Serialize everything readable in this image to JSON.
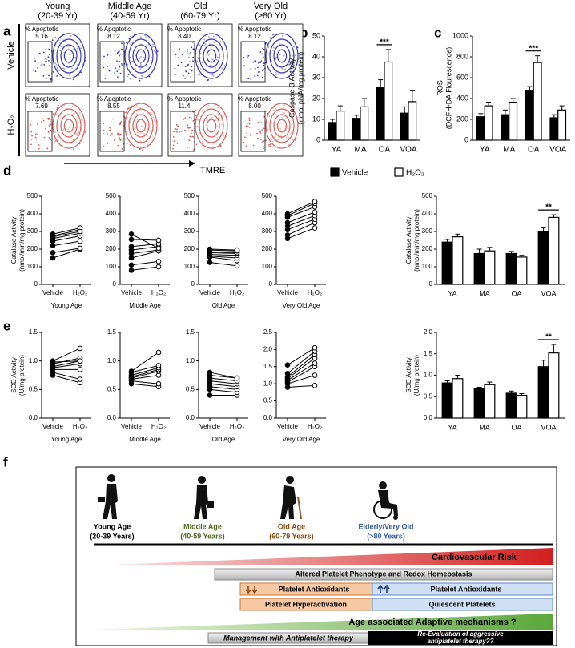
{
  "panel_letters": [
    "a",
    "b",
    "c",
    "d",
    "e",
    "f"
  ],
  "flow": {
    "columns": [
      {
        "name": "Young",
        "range": "(20-39 Yr)"
      },
      {
        "name": "Middle Age",
        "range": "(40-59 Yr)"
      },
      {
        "name": "Old",
        "range": "(60-79 Yr)"
      },
      {
        "name": "Very Old",
        "range": "(≥80 Yr)"
      }
    ],
    "rows": [
      {
        "label": "Vehicle",
        "color": "#3a3ab0",
        "gates": [
          {
            "title": "% Apoptotic",
            "value": "5.16"
          },
          {
            "title": "% Apoptotic",
            "value": "8.12"
          },
          {
            "title": "% Apoptotic",
            "value": "8.40"
          },
          {
            "title": "% Apoptotic",
            "value": "8.12"
          }
        ]
      },
      {
        "label": "H₂O₂",
        "color": "#d9605a",
        "gates": [
          {
            "title": "% Apoptotic",
            "value": "7.69"
          },
          {
            "title": "% Apoptotic",
            "value": "8.55"
          },
          {
            "title": "% Apoptotic",
            "value": "11.4"
          },
          {
            "title": "% Apoptotic",
            "value": "8.00"
          }
        ]
      }
    ],
    "xlabel": "TMRE"
  },
  "chart_data": [
    {
      "type": "bar",
      "ylabel": [
        "Caspase-3 Activity",
        "(umol pNA/mg protein)"
      ],
      "categories": [
        "YA",
        "MA",
        "OA",
        "VOA"
      ],
      "series": [
        {
          "name": "Vehicle",
          "color": "#000000",
          "values": [
            8.5,
            10.5,
            25.5,
            13
          ],
          "errors": [
            1.5,
            1.5,
            3.5,
            3
          ]
        },
        {
          "name": "H₂O₂",
          "color": "#ffffff",
          "values": [
            14,
            16,
            37.5,
            18.5
          ],
          "errors": [
            2.5,
            4,
            6,
            5.5
          ]
        }
      ],
      "ylim": [
        0,
        50
      ],
      "yticks": [
        0,
        10,
        20,
        30,
        40,
        50
      ],
      "annotations": [
        {
          "category": "OA",
          "text": "***"
        }
      ],
      "legend": "below"
    },
    {
      "type": "bar",
      "ylabel": [
        "ROS",
        "(DCFH-DA Flourescence)"
      ],
      "categories": [
        "YA",
        "MA",
        "OA",
        "VOA"
      ],
      "series": [
        {
          "color": "#000000",
          "values": [
            225,
            245,
            480,
            215
          ],
          "errors": [
            30,
            45,
            35,
            30
          ]
        },
        {
          "color": "#ffffff",
          "values": [
            330,
            365,
            745,
            290
          ],
          "errors": [
            35,
            35,
            65,
            40
          ]
        }
      ],
      "ylim": [
        0,
        1000
      ],
      "yticks": [
        0,
        200,
        400,
        600,
        800,
        1000
      ],
      "annotations": [
        {
          "category": "OA",
          "text": "***"
        }
      ]
    },
    {
      "type": "paired",
      "ylabel": [
        "Catalase Activity",
        "(nmol/min/mg protein)"
      ],
      "xlabel": "Young Age",
      "categories": [
        "Vehicle",
        "H₂O₂"
      ],
      "marker_fill": [
        "#000000",
        "#ffffff"
      ],
      "ylim": [
        0,
        500
      ],
      "yticks": [
        0,
        100,
        200,
        300,
        400,
        500
      ],
      "series": [
        {
          "values": [
            150,
            200
          ]
        },
        {
          "values": [
            180,
            205
          ]
        },
        {
          "values": [
            220,
            245
          ]
        },
        {
          "values": [
            245,
            275
          ]
        },
        {
          "values": [
            260,
            290
          ]
        },
        {
          "values": [
            275,
            310
          ]
        },
        {
          "values": [
            285,
            320
          ]
        },
        {
          "values": [
            270,
            300
          ]
        }
      ]
    },
    {
      "type": "paired",
      "xlabel": "Middle Age",
      "categories": [
        "Vehicle",
        "H₂O₂"
      ],
      "marker_fill": [
        "#000000",
        "#ffffff"
      ],
      "ylim": [
        0,
        500
      ],
      "yticks": [
        0,
        100,
        200,
        300,
        400,
        500
      ],
      "series": [
        {
          "values": [
            80,
            100
          ]
        },
        {
          "values": [
            110,
            130
          ]
        },
        {
          "values": [
            150,
            190
          ]
        },
        {
          "values": [
            175,
            195
          ]
        },
        {
          "values": [
            195,
            215
          ]
        },
        {
          "values": [
            215,
            230
          ]
        },
        {
          "values": [
            255,
            250
          ]
        },
        {
          "values": [
            285,
            205
          ]
        }
      ]
    },
    {
      "type": "paired",
      "xlabel": "Old Age",
      "categories": [
        "Vehicle",
        "H₂O₂"
      ],
      "marker_fill": [
        "#000000",
        "#ffffff"
      ],
      "ylim": [
        0,
        500
      ],
      "yticks": [
        0,
        100,
        200,
        300,
        400,
        500
      ],
      "series": [
        {
          "values": [
            125,
            105
          ]
        },
        {
          "values": [
            155,
            135
          ]
        },
        {
          "values": [
            160,
            150
          ]
        },
        {
          "values": [
            170,
            165
          ]
        },
        {
          "values": [
            180,
            175
          ]
        },
        {
          "values": [
            185,
            180
          ]
        },
        {
          "values": [
            195,
            190
          ]
        },
        {
          "values": [
            200,
            195
          ]
        }
      ]
    },
    {
      "type": "paired",
      "xlabel": "Very Old Age",
      "categories": [
        "Vehicle",
        "H₂O₂"
      ],
      "marker_fill": [
        "#000000",
        "#ffffff"
      ],
      "ylim": [
        0,
        500
      ],
      "yticks": [
        0,
        100,
        200,
        300,
        400,
        500
      ],
      "series": [
        {
          "values": [
            260,
            320
          ]
        },
        {
          "values": [
            280,
            350
          ]
        },
        {
          "values": [
            310,
            370
          ]
        },
        {
          "values": [
            330,
            390
          ]
        },
        {
          "values": [
            350,
            410
          ]
        },
        {
          "values": [
            380,
            440
          ]
        },
        {
          "values": [
            390,
            460
          ]
        },
        {
          "values": [
            400,
            470
          ]
        }
      ]
    },
    {
      "type": "bar",
      "ylabel": [
        "Catalase Activity",
        "(nmol/min/mg protein)"
      ],
      "categories": [
        "YA",
        "MA",
        "OA",
        "VOA"
      ],
      "series": [
        {
          "color": "#000000",
          "values": [
            240,
            175,
            175,
            300
          ],
          "errors": [
            15,
            25,
            12,
            20
          ]
        },
        {
          "color": "#ffffff",
          "values": [
            270,
            190,
            155,
            380
          ],
          "errors": [
            15,
            20,
            10,
            15
          ]
        }
      ],
      "ylim": [
        0,
        500
      ],
      "yticks": [
        0,
        100,
        200,
        300,
        400,
        500
      ],
      "annotations": [
        {
          "category": "VOA",
          "text": "**"
        }
      ]
    },
    {
      "type": "paired",
      "ylabel": [
        "SOD Activity",
        "(U/mg protein)"
      ],
      "xlabel": "Young Age",
      "categories": [
        "Vehicle",
        "H₂O₂"
      ],
      "marker_fill": [
        "#000000",
        "#ffffff"
      ],
      "ylim": [
        0,
        1.5
      ],
      "yticks": [
        {
          "value": 0,
          "label": "0.0"
        },
        {
          "value": 0.5,
          "label": "0.5"
        },
        {
          "value": 1,
          "label": "1.0"
        },
        {
          "value": 1.5,
          "label": "1.5"
        }
      ],
      "series": [
        {
          "values": [
            0.75,
            0.62
          ]
        },
        {
          "values": [
            0.8,
            0.68
          ]
        },
        {
          "values": [
            0.85,
            0.85
          ]
        },
        {
          "values": [
            0.88,
            0.95
          ]
        },
        {
          "values": [
            0.9,
            1.0
          ]
        },
        {
          "values": [
            0.95,
            1.05
          ]
        },
        {
          "values": [
            1.0,
            1.22
          ]
        },
        {
          "values": [
            0.98,
            1.0
          ]
        }
      ]
    },
    {
      "type": "paired",
      "xlabel": "Middle Age",
      "categories": [
        "Vehicle",
        "H₂O₂"
      ],
      "marker_fill": [
        "#000000",
        "#ffffff"
      ],
      "ylim": [
        0,
        1.5
      ],
      "yticks": [
        {
          "value": 0,
          "label": "0.0"
        },
        {
          "value": 0.5,
          "label": "0.5"
        },
        {
          "value": 1,
          "label": "1.0"
        },
        {
          "value": 1.5,
          "label": "1.5"
        }
      ],
      "series": [
        {
          "values": [
            0.6,
            0.55
          ]
        },
        {
          "values": [
            0.65,
            0.6
          ]
        },
        {
          "values": [
            0.68,
            0.75
          ]
        },
        {
          "values": [
            0.7,
            0.82
          ]
        },
        {
          "values": [
            0.72,
            0.85
          ]
        },
        {
          "values": [
            0.75,
            0.88
          ]
        },
        {
          "values": [
            0.8,
            0.92
          ]
        },
        {
          "values": [
            0.82,
            1.15
          ]
        }
      ]
    },
    {
      "type": "paired",
      "xlabel": "Old Age",
      "categories": [
        "Vehicle",
        "H₂O₂"
      ],
      "marker_fill": [
        "#000000",
        "#ffffff"
      ],
      "ylim": [
        0,
        1.5
      ],
      "yticks": [
        {
          "value": 0,
          "label": "0.0"
        },
        {
          "value": 0.5,
          "label": "0.5"
        },
        {
          "value": 1,
          "label": "1.0"
        },
        {
          "value": 1.5,
          "label": "1.5"
        }
      ],
      "series": [
        {
          "values": [
            0.4,
            0.4
          ]
        },
        {
          "values": [
            0.5,
            0.45
          ]
        },
        {
          "values": [
            0.55,
            0.5
          ]
        },
        {
          "values": [
            0.6,
            0.55
          ]
        },
        {
          "values": [
            0.65,
            0.6
          ]
        },
        {
          "values": [
            0.7,
            0.65
          ]
        },
        {
          "values": [
            0.75,
            0.7
          ]
        },
        {
          "values": [
            0.8,
            0.7
          ]
        }
      ]
    },
    {
      "type": "paired",
      "xlabel": "Very Old Age",
      "categories": [
        "Vehicle",
        "H₂O₂"
      ],
      "marker_fill": [
        "#000000",
        "#ffffff"
      ],
      "ylim": [
        0,
        2.5
      ],
      "yticks": [
        {
          "value": 0,
          "label": "0.0"
        },
        {
          "value": 0.5,
          "label": "0.5"
        },
        {
          "value": 1,
          "label": "1.0"
        },
        {
          "value": 1.5,
          "label": "1.5"
        },
        {
          "value": 2,
          "label": "2.0"
        },
        {
          "value": 2.5,
          "label": "2.5"
        }
      ],
      "series": [
        {
          "values": [
            0.9,
            0.95
          ]
        },
        {
          "values": [
            1.0,
            1.25
          ]
        },
        {
          "values": [
            1.05,
            1.5
          ]
        },
        {
          "values": [
            1.1,
            1.6
          ]
        },
        {
          "values": [
            1.15,
            1.75
          ]
        },
        {
          "values": [
            1.2,
            1.85
          ]
        },
        {
          "values": [
            1.3,
            1.95
          ]
        },
        {
          "values": [
            1.55,
            2.05
          ]
        }
      ]
    },
    {
      "type": "bar",
      "ylabel": [
        "SOD Activity",
        "(U/mg protein)"
      ],
      "categories": [
        "YA",
        "MA",
        "OA",
        "VOA"
      ],
      "series": [
        {
          "color": "#000000",
          "values": [
            0.82,
            0.68,
            0.58,
            1.2
          ],
          "errors": [
            0.05,
            0.04,
            0.05,
            0.15
          ]
        },
        {
          "color": "#ffffff",
          "values": [
            0.92,
            0.78,
            0.53,
            1.52
          ],
          "errors": [
            0.08,
            0.06,
            0.04,
            0.2
          ]
        }
      ],
      "ylim": [
        0,
        2
      ],
      "yticks": [
        {
          "value": 0,
          "label": "0.0"
        },
        {
          "value": 0.5,
          "label": "0.5"
        },
        {
          "value": 1,
          "label": "1.0"
        },
        {
          "value": 1.5,
          "label": "1.5"
        },
        {
          "value": 2,
          "label": "2.0"
        }
      ],
      "annotations": [
        {
          "category": "VOA",
          "text": "**"
        }
      ]
    }
  ],
  "diagram": {
    "stages": [
      {
        "name": "Young Age",
        "range": "(20-39 Years)",
        "color": "#000000"
      },
      {
        "name": "Middle Age",
        "range": "(40-59 Years)",
        "color": "#4d6b1f"
      },
      {
        "name": "Old Age",
        "range": "(60-79 Years)",
        "color": "#8a4b12"
      },
      {
        "name": "Elderly/Very Old",
        "range": "(>80 Years)",
        "color": "#2f5ca8"
      }
    ],
    "risk": "Cardiovascular Risk",
    "phenotype": "Altered Platelet Phenotype and Redox Homeostasis",
    "antioxidants_down": "Platelet Antioxidants",
    "antioxidants_up": "Platelet Antioxidants",
    "hyperactivation": "Platelet Hyperactivation",
    "quiescent": "Quiescent Platelets",
    "adaptive": "Age associated Adaptive mechanisms ?",
    "management": "Management with Antiplatelet therapy",
    "reevaluation": [
      "Re-Evaluation of aggressive",
      "antiplatelet therapy??"
    ]
  }
}
